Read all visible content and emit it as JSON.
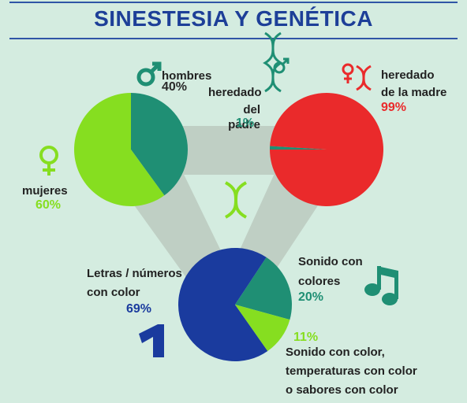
{
  "title": "SINESTESIA Y GENÉTICA",
  "colors": {
    "green": "#86de20",
    "teal": "#1f8f74",
    "red": "#ea2a2b",
    "blue": "#1a3b9e",
    "band": "#bfcfc4"
  },
  "labels": {
    "hombres": "hombres",
    "hombres_pct": "40%",
    "mujeres": "mujeres",
    "mujeres_pct": "60%",
    "padre_1": "heredado",
    "padre_2": "del padre",
    "padre_pct": "1%",
    "madre_1": "heredado",
    "madre_2": "de la madre",
    "madre_pct": "99%",
    "letras_1": "Letras / números",
    "letras_2": "con color",
    "letras_pct": "69%",
    "sonido_1": "Sonido con",
    "sonido_2": "colores",
    "sonido_pct": "20%",
    "otros_pct": "11%",
    "otros_1": "Sonido con color,",
    "otros_2": "temperaturas con color",
    "otros_3": "o  sabores con color"
  },
  "icons": [
    "male-icon",
    "female-icon",
    "dna-icon",
    "music-note-icon",
    "number-one-icon"
  ],
  "chart_data": [
    {
      "type": "pie",
      "categories": [
        "hombres",
        "mujeres"
      ],
      "values": [
        40,
        60
      ],
      "colors": [
        "#1f8f74",
        "#86de20"
      ]
    },
    {
      "type": "pie",
      "categories": [
        "heredado del padre",
        "heredado de la madre"
      ],
      "values": [
        1,
        99
      ],
      "colors": [
        "#1f8f74",
        "#ea2a2b"
      ]
    },
    {
      "type": "pie",
      "categories": [
        "Letras / números con color",
        "Sonido con colores",
        "Sonido con color, temperaturas con color o sabores con color"
      ],
      "values": [
        69,
        20,
        11
      ],
      "colors": [
        "#1a3b9e",
        "#1f8f74",
        "#86de20"
      ]
    }
  ]
}
